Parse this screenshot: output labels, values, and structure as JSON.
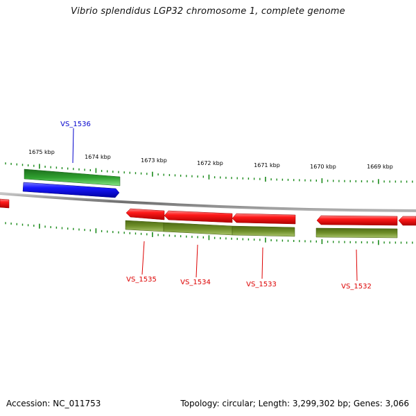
{
  "title": "Vibrio splendidus LGP32 chromosome 1, complete genome",
  "footer": {
    "accession_text": "Accession: NC_011753",
    "summary_text": "Topology: circular; Length: 3,299,302 bp; Genes: 3,066"
  },
  "colors": {
    "backbone": "#8a8a8a",
    "tick": "#1a8a1a",
    "gene_red": "#ee0000",
    "gene_blue": "#0a0aee",
    "gene_green": "#2ea82e",
    "gene_olive": "#6b8e23",
    "label_red": "#dd0000",
    "label_blue": "#0000cc"
  },
  "scale_labels": [
    "1675 kbp",
    "1674 kbp",
    "1673 kbp",
    "1672 kbp",
    "1671 kbp",
    "1670 kbp",
    "1669 kbp"
  ],
  "genes": [
    {
      "tag": "VS_1536",
      "strand": "forward",
      "color": "blue"
    },
    {
      "tag": "VS_1535",
      "strand": "reverse",
      "color": "red"
    },
    {
      "tag": "VS_1534",
      "strand": "reverse",
      "color": "red"
    },
    {
      "tag": "VS_1533",
      "strand": "reverse",
      "color": "red"
    },
    {
      "tag": "VS_1532",
      "strand": "reverse",
      "color": "red"
    }
  ]
}
